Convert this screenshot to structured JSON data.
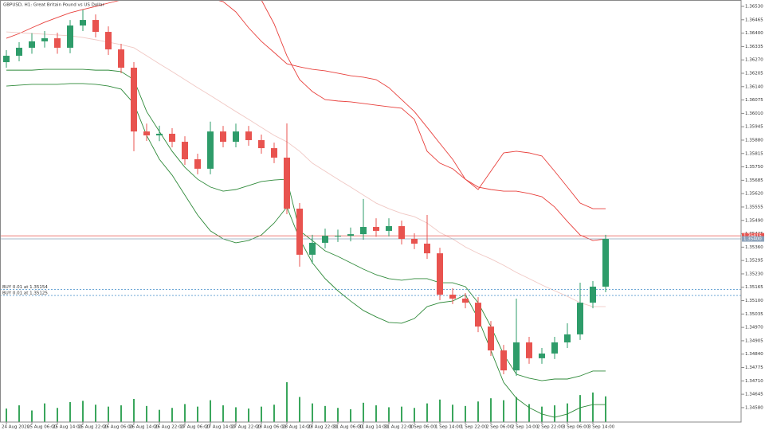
{
  "chart_data": {
    "type": "candlestick",
    "title": "GBPUSD, H1: Great Britain Pound vs US Dollar",
    "categories": [
      "24 Aug 2020",
      null,
      "25 Aug 06:00",
      null,
      "25 Aug 14:00",
      null,
      "25 Aug 22:00",
      null,
      "26 Aug 06:00",
      null,
      "26 Aug 14:00",
      null,
      "26 Aug 22:00",
      null,
      "27 Aug 06:00",
      null,
      "27 Aug 14:00",
      null,
      "27 Aug 22:00",
      null,
      "28 Aug 06:00",
      null,
      "28 Aug 14:00",
      null,
      "28 Aug 22:00",
      null,
      "31 Aug 06:00",
      null,
      "31 Aug 14:00",
      null,
      "31 Aug 22:00",
      null,
      "1 Sep 06:00",
      null,
      "1 Sep 14:00",
      null,
      "1 Sep 22:00",
      null,
      "2 Sep 06:00",
      null,
      "2 Sep 14:00",
      null,
      "2 Sep 22:00",
      null,
      "3 Sep 06:00",
      null,
      "3 Sep 14:00",
      null
    ],
    "open": [
      1.36259,
      1.3629,
      1.36329,
      1.3636,
      1.36375,
      1.36329,
      1.36437,
      1.36464,
      1.36406,
      1.36321,
      1.36232,
      1.35922,
      1.35903,
      1.35911,
      1.35872,
      1.35787,
      1.35741,
      1.35922,
      1.35872,
      1.35922,
      1.3588,
      1.35841,
      1.35795,
      1.35547,
      1.35323,
      1.35381,
      1.35415,
      1.35415,
      1.35423,
      1.35458,
      1.35439,
      1.35462,
      1.354,
      1.35377,
      1.3533,
      1.35129,
      1.3511,
      1.3509,
      1.34974,
      1.34858,
      1.34761,
      1.34897,
      1.3482,
      1.34843,
      1.34897,
      1.34936,
      1.3509,
      1.35168
    ],
    "high": [
      1.36317,
      1.36356,
      1.364,
      1.3641,
      1.36402,
      1.36464,
      1.36514,
      1.36491,
      1.36433,
      1.36348,
      1.36259,
      1.3596,
      1.3595,
      1.35938,
      1.35899,
      1.35814,
      1.3597,
      1.35949,
      1.3596,
      1.35949,
      1.35907,
      1.35868,
      1.35961,
      1.35574,
      1.3542,
      1.3545,
      1.35445,
      1.35455,
      1.35594,
      1.355,
      1.355,
      1.35489,
      1.35427,
      1.35516,
      1.35357,
      1.3516,
      1.35137,
      1.35117,
      1.35001,
      1.34885,
      1.3511,
      1.34924,
      1.3487,
      1.34924,
      1.3499,
      1.35187,
      1.35195,
      1.3542
    ],
    "low": [
      1.36232,
      1.36263,
      1.363,
      1.3633,
      1.363,
      1.36302,
      1.3641,
      1.36379,
      1.36294,
      1.36205,
      1.35826,
      1.35876,
      1.35875,
      1.35845,
      1.3576,
      1.35714,
      1.35714,
      1.35845,
      1.35845,
      1.35853,
      1.35814,
      1.35768,
      1.3552,
      1.35265,
      1.3528,
      1.35354,
      1.35385,
      1.35388,
      1.35396,
      1.3541,
      1.35412,
      1.35373,
      1.3535,
      1.35303,
      1.35102,
      1.35083,
      1.35063,
      1.34947,
      1.34831,
      1.34742,
      1.34734,
      1.34793,
      1.34793,
      1.34816,
      1.3487,
      1.34909,
      1.35063,
      1.35141
    ],
    "close": [
      1.3629,
      1.36329,
      1.3636,
      1.36375,
      1.36329,
      1.36437,
      1.36464,
      1.36406,
      1.36321,
      1.36232,
      1.35922,
      1.35903,
      1.35911,
      1.35872,
      1.35787,
      1.35741,
      1.35922,
      1.35872,
      1.35922,
      1.3588,
      1.35841,
      1.35795,
      1.35547,
      1.35323,
      1.35381,
      1.35415,
      1.35415,
      1.35423,
      1.35458,
      1.35439,
      1.35462,
      1.354,
      1.35377,
      1.3533,
      1.35129,
      1.3511,
      1.3509,
      1.34974,
      1.34858,
      1.34761,
      1.34897,
      1.3482,
      1.34843,
      1.34897,
      1.34936,
      1.3509,
      1.35168,
      1.354
    ],
    "volume": [
      2100,
      2600,
      1800,
      2900,
      2200,
      3100,
      3300,
      2700,
      2400,
      2600,
      3600,
      2500,
      1900,
      2200,
      2800,
      2400,
      3400,
      2600,
      2300,
      2100,
      2400,
      2700,
      6200,
      3900,
      2900,
      2500,
      2200,
      2000,
      3000,
      2600,
      2300,
      2400,
      2200,
      2900,
      3500,
      2700,
      2500,
      3200,
      3700,
      3400,
      3900,
      2800,
      2400,
      2600,
      2900,
      4200,
      4600,
      4000
    ],
    "up_color": "#2e9c6a",
    "down_color": "#e8534f",
    "volume_color": "#3aa65c",
    "lines": [
      {
        "color": "#e8403c",
        "values": [
          1.36375,
          1.36398,
          1.36426,
          1.36453,
          1.36476,
          1.36499,
          1.36515,
          1.3653,
          1.36546,
          1.36561,
          1.3658,
          1.366,
          1.366,
          1.366,
          1.36592,
          1.3658,
          1.36569,
          1.36553,
          1.36503,
          1.36426,
          1.3636,
          1.36306,
          1.36251,
          1.36236,
          1.36224,
          1.36217,
          1.36205,
          1.36193,
          1.36186,
          1.36174,
          1.36135,
          1.36077,
          1.36019,
          1.35942,
          1.35864,
          1.35787,
          1.3569,
          1.3564,
          1.35729,
          1.35818,
          1.35826,
          1.35818,
          1.35803,
          1.35729,
          1.35652,
          1.35574,
          1.35547,
          1.35547
        ]
      },
      {
        "color": "#e8403c",
        "values": [
          null,
          null,
          null,
          null,
          null,
          null,
          null,
          null,
          null,
          null,
          null,
          null,
          null,
          null,
          null,
          null,
          null,
          null,
          null,
          null,
          1.36561,
          1.36445,
          1.3629,
          1.36174,
          1.36116,
          1.36077,
          1.3607,
          1.36066,
          1.36058,
          1.3605,
          1.36042,
          1.36035,
          1.35981,
          1.35826,
          1.35768,
          1.35741,
          1.3569,
          1.35652,
          1.3564,
          1.35632,
          1.35632,
          1.35621,
          1.35605,
          1.35555,
          1.35485,
          1.35419,
          1.35392,
          1.354
        ]
      },
      {
        "color": "#f0c8c4",
        "values": [
          1.36406,
          1.36402,
          1.36398,
          1.36395,
          1.36391,
          1.36387,
          1.36379,
          1.36368,
          1.36356,
          1.36344,
          1.36329,
          1.3629,
          1.36251,
          1.36213,
          1.36174,
          1.36135,
          1.36097,
          1.36058,
          1.36019,
          1.35981,
          1.35942,
          1.35903,
          1.35872,
          1.35826,
          1.35768,
          1.35729,
          1.3569,
          1.35652,
          1.35613,
          1.35574,
          1.35547,
          1.35524,
          1.35508,
          1.35477,
          1.35431,
          1.354,
          1.35361,
          1.3533,
          1.35303,
          1.35272,
          1.35237,
          1.35207,
          1.35176,
          1.35148,
          1.35121,
          1.3509,
          1.35071,
          1.35071
        ]
      },
      {
        "color": "#2f8a3a",
        "values": [
          1.3622,
          1.3622,
          1.3622,
          1.36224,
          1.36224,
          1.36224,
          1.36224,
          1.3622,
          1.3622,
          1.36213,
          1.36174,
          1.36019,
          1.35922,
          1.35826,
          1.35748,
          1.3569,
          1.35652,
          1.35632,
          1.3564,
          1.35659,
          1.35679,
          1.35686,
          1.3569,
          1.35439,
          1.35392,
          1.35342,
          1.35315,
          1.35284,
          1.35253,
          1.35226,
          1.35207,
          1.35199,
          1.35207,
          1.35207,
          1.35187,
          1.35187,
          1.35168,
          1.3509,
          1.34974,
          1.34839,
          1.34742,
          1.34723,
          1.34711,
          1.34719,
          1.34719,
          1.34734,
          1.34758,
          1.34758
        ]
      },
      {
        "color": "#2f8a3a",
        "values": [
          1.36143,
          1.36147,
          1.36151,
          1.36151,
          1.36151,
          1.36155,
          1.36155,
          1.36151,
          1.36143,
          1.36128,
          1.36058,
          1.35903,
          1.35787,
          1.3571,
          1.35613,
          1.35516,
          1.35439,
          1.354,
          1.35381,
          1.35392,
          1.35419,
          1.35477,
          1.35555,
          1.354,
          1.35284,
          1.35207,
          1.35148,
          1.35098,
          1.35052,
          1.35021,
          1.34994,
          1.3499,
          1.35013,
          1.35071,
          1.3509,
          1.35098,
          1.35129,
          1.35013,
          1.34858,
          1.34703,
          1.34626,
          1.3458,
          1.34549,
          1.34533,
          1.34549,
          1.3458,
          1.34595,
          1.34595
        ]
      }
    ],
    "price_lines": [
      {
        "value": 1.35415,
        "label": "1.35415",
        "color": "#e8534f"
      },
      {
        "value": 1.354,
        "label": "1.35400",
        "color": "#8aa0b8"
      }
    ],
    "orders": [
      {
        "value": 1.35154,
        "text": "BUY 0.01 at 1.35154",
        "color": "#5a9bd0"
      },
      {
        "value": 1.35125,
        "text": "BUY 0.01 at 1.35125",
        "color": "#5a9bd0"
      }
    ],
    "ylim": [
      1.3451,
      1.36561
    ],
    "yticks": [
      {
        "value": 1.3653,
        "label": "1.36530"
      },
      {
        "value": 1.36465,
        "label": "1.36465"
      },
      {
        "value": 1.364,
        "label": "1.36400"
      },
      {
        "value": 1.36335,
        "label": "1.36335"
      },
      {
        "value": 1.3627,
        "label": "1.36270"
      },
      {
        "value": 1.36205,
        "label": "1.36205"
      },
      {
        "value": 1.3614,
        "label": "1.36140"
      },
      {
        "value": 1.36075,
        "label": "1.36075"
      },
      {
        "value": 1.3601,
        "label": "1.36010"
      },
      {
        "value": 1.35945,
        "label": "1.35945"
      },
      {
        "value": 1.3588,
        "label": "1.35880"
      },
      {
        "value": 1.35815,
        "label": "1.35815"
      },
      {
        "value": 1.3575,
        "label": "1.35750"
      },
      {
        "value": 1.35685,
        "label": "1.35685"
      },
      {
        "value": 1.3562,
        "label": "1.35620"
      },
      {
        "value": 1.35555,
        "label": "1.35555"
      },
      {
        "value": 1.3549,
        "label": "1.35490"
      },
      {
        "value": 1.35425,
        "label": "1.35425"
      },
      {
        "value": 1.3536,
        "label": "1.35360"
      },
      {
        "value": 1.35295,
        "label": "1.35295"
      },
      {
        "value": 1.3523,
        "label": "1.35230"
      },
      {
        "value": 1.35165,
        "label": "1.35165"
      },
      {
        "value": 1.351,
        "label": "1.35100"
      },
      {
        "value": 1.35035,
        "label": "1.35035"
      },
      {
        "value": 1.3497,
        "label": "1.34970"
      },
      {
        "value": 1.34905,
        "label": "1.34905"
      },
      {
        "value": 1.3484,
        "label": "1.34840"
      },
      {
        "value": 1.34775,
        "label": "1.34775"
      },
      {
        "value": 1.3471,
        "label": "1.34710"
      },
      {
        "value": 1.34645,
        "label": "1.34645"
      },
      {
        "value": 1.3458,
        "label": "1.34580"
      }
    ],
    "grid": false
  }
}
